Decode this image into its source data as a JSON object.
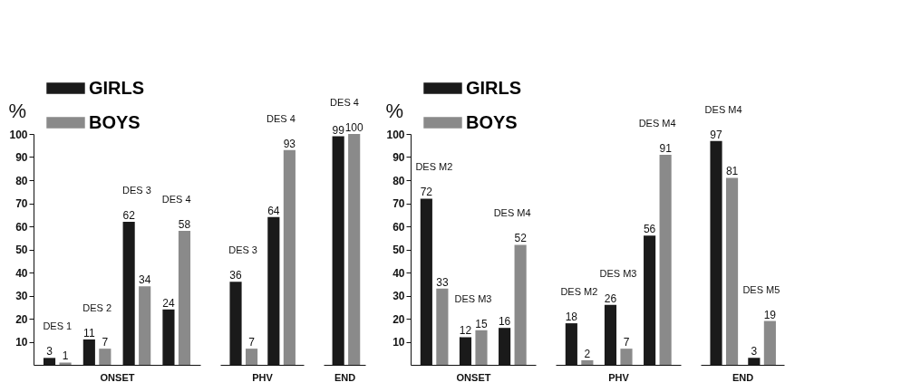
{
  "chart_data": [
    {
      "type": "bar",
      "ylabel": "%",
      "xlabel": "ONSET",
      "categories": [
        null,
        null,
        null,
        null
      ],
      "annotations": [
        "DES 1",
        "DES 2",
        "DES 3",
        "DES 4"
      ],
      "series": [
        {
          "name": "GIRLS",
          "color": "#1a1a1a",
          "values": [
            3,
            11,
            62,
            24
          ]
        },
        {
          "name": "BOYS",
          "color": "#8a8a8a",
          "values": [
            1,
            7,
            34,
            58
          ]
        }
      ],
      "ylim": [
        0,
        100
      ],
      "yticks": [
        10,
        20,
        30,
        40,
        50,
        60,
        70,
        80,
        90,
        100
      ],
      "data_labels": true,
      "legend": "top left",
      "tick_labels": "y"
    },
    {
      "type": "bar",
      "xlabel": "PHV",
      "categories": [
        null,
        null
      ],
      "annotations": [
        "DES 3",
        "DES 4"
      ],
      "series": [
        {
          "color": "#1a1a1a",
          "values": [
            36,
            64
          ]
        },
        {
          "color": "#8a8a8a",
          "values": [
            7,
            93
          ]
        }
      ],
      "data_labels": true,
      "tick_labels": false
    },
    {
      "type": "bar",
      "xlabel": "END",
      "categories": [
        null
      ],
      "annotations": [
        "DES 4"
      ],
      "series": [
        {
          "color": "#1a1a1a",
          "values": [
            99
          ]
        },
        {
          "color": "#8a8a8a",
          "values": [
            100
          ]
        }
      ],
      "data_labels": true,
      "tick_labels": false
    },
    {
      "type": "bar",
      "ylabel": "%",
      "xlabel": "ONSET",
      "categories": [
        null,
        null,
        null
      ],
      "annotations": [
        "DES M2",
        "DES M3",
        "DES M4"
      ],
      "series": [
        {
          "name": "GIRLS",
          "color": "#1a1a1a",
          "values": [
            72,
            12,
            16
          ]
        },
        {
          "name": "BOYS",
          "color": "#8a8a8a",
          "values": [
            33,
            15,
            52
          ]
        }
      ],
      "ylim": [
        0,
        100
      ],
      "yticks": [
        10,
        20,
        30,
        40,
        50,
        60,
        70,
        80,
        90,
        100
      ],
      "data_labels": true,
      "legend": "top left",
      "tick_labels": "y"
    },
    {
      "type": "bar",
      "xlabel": "PHV",
      "categories": [
        null,
        null,
        null
      ],
      "annotations": [
        "DES M2",
        "DES M3",
        "DES M4"
      ],
      "series": [
        {
          "color": "#1a1a1a",
          "values": [
            18,
            26,
            56
          ]
        },
        {
          "color": "#8a8a8a",
          "values": [
            2,
            7,
            91
          ]
        }
      ],
      "data_labels": true,
      "tick_labels": false
    },
    {
      "type": "bar",
      "xlabel": "END",
      "categories": [
        null,
        null
      ],
      "annotations": [
        "DES M4",
        "DES M5"
      ],
      "series": [
        {
          "color": "#1a1a1a",
          "values": [
            97,
            3
          ]
        },
        {
          "color": "#8a8a8a",
          "values": [
            81,
            19
          ]
        }
      ],
      "data_labels": true,
      "tick_labels": false
    }
  ]
}
